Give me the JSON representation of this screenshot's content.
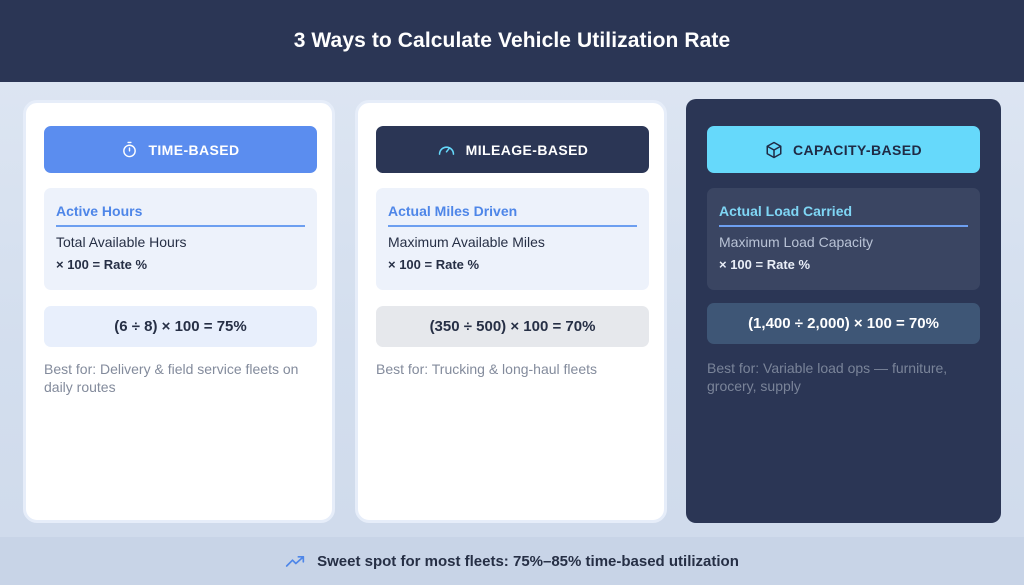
{
  "header": {
    "title": "3 Ways to Calculate Vehicle Utilization Rate"
  },
  "cards": [
    {
      "label": "TIME-BASED",
      "icon": "stopwatch-icon",
      "numerator": "Active Hours",
      "denominator": "Total Available Hours",
      "multiplier": "× 100 = Rate %",
      "example": "(6 ÷ 8) × 100 = 75%",
      "best_for": "Best for: Delivery & field service fleets on daily routes"
    },
    {
      "label": "MILEAGE-BASED",
      "icon": "speedometer-icon",
      "numerator": "Actual Miles Driven",
      "denominator": "Maximum Available Miles",
      "multiplier": "× 100 = Rate %",
      "example": "(350 ÷ 500) × 100 = 70%",
      "best_for": "Best for: Trucking & long-haul fleets"
    },
    {
      "label": "CAPACITY-BASED",
      "icon": "box-icon",
      "numerator": "Actual Load Carried",
      "denominator": "Maximum Load Capacity",
      "multiplier": "× 100 = Rate %",
      "example": "(1,400 ÷ 2,000) × 100 = 70%",
      "best_for": "Best for: Variable load ops — furniture, grocery, supply"
    }
  ],
  "footer": {
    "icon": "trending-up-icon",
    "text": "Sweet spot for most fleets: 75%–85% time-based utilization"
  },
  "colors": {
    "navy": "#2b3655",
    "blue": "#5b8def",
    "cyan": "#66d9fb"
  }
}
